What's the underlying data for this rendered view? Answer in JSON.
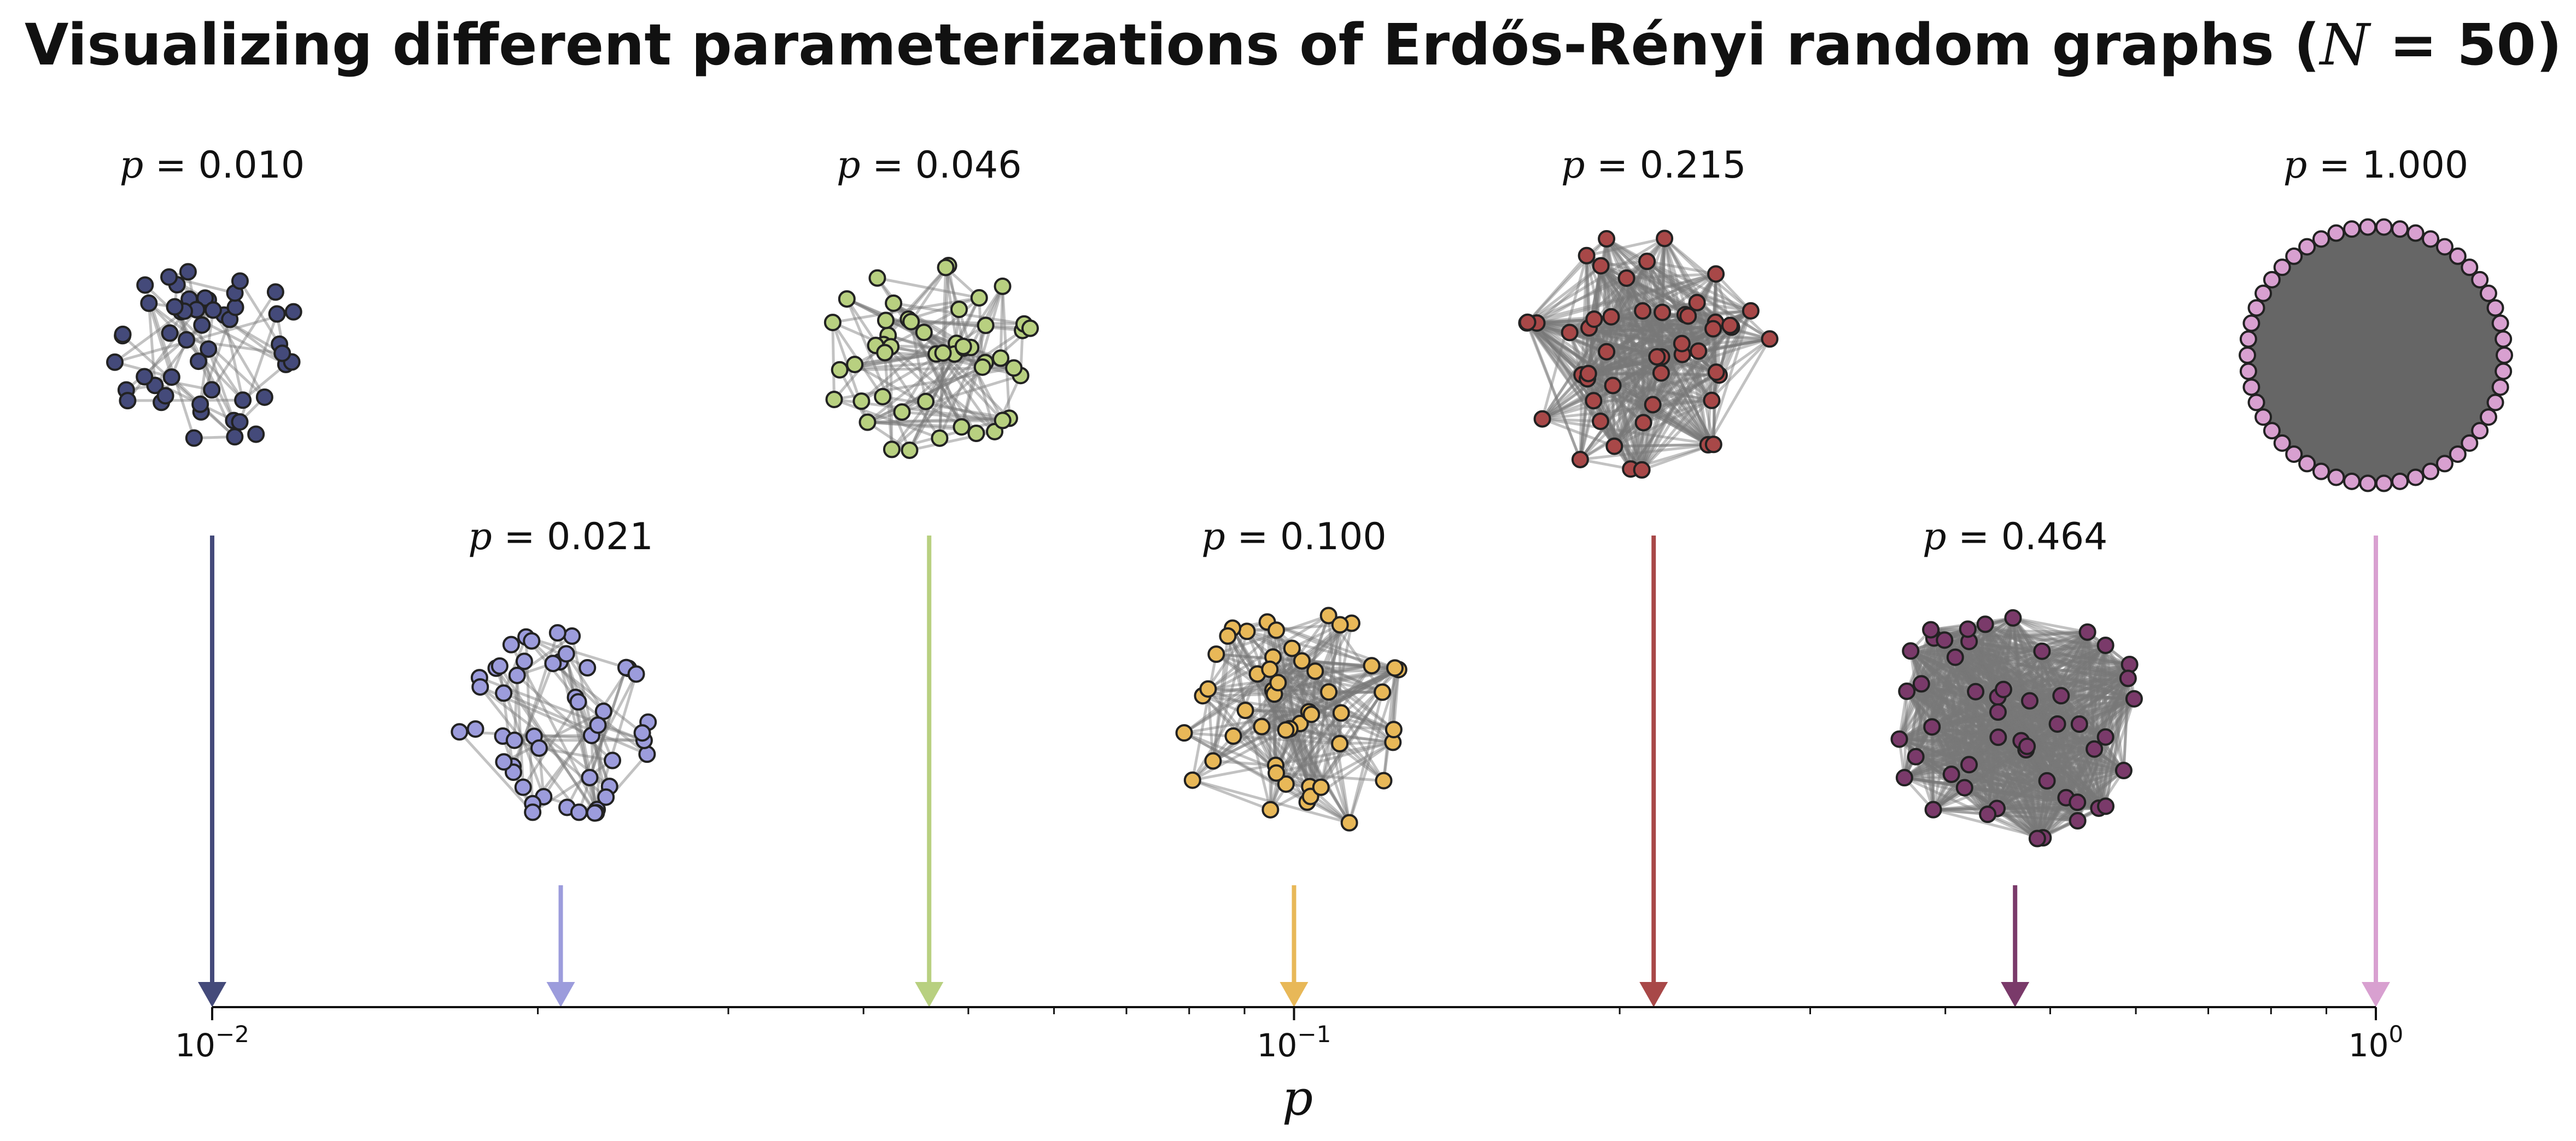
{
  "chart_data": {
    "type": "scatter",
    "title": "Visualizing different parameterizations of Erdős-Rényi random graphs (N = 50)",
    "title_parts": {
      "text": "Visualizing different parameterizations of Erdős-Rényi random graphs (",
      "var": "N",
      "rest": " = 50)"
    },
    "xlabel": "p",
    "x_scale": "log",
    "xlim": [
      0.01,
      1.0
    ],
    "x_ticks": [
      {
        "value": 0.01,
        "base": "10",
        "exp": "−2"
      },
      {
        "value": 0.1,
        "base": "10",
        "exp": "−1"
      },
      {
        "value": 1.0,
        "base": "10",
        "exp": "0"
      }
    ],
    "grid": false,
    "num_nodes": 50,
    "series": [
      {
        "p": 0.01,
        "label": "p = 0.010",
        "value_text": "0.010",
        "color": "#444a7a",
        "row": "top"
      },
      {
        "p": 0.021,
        "label": "p = 0.021",
        "value_text": "0.021",
        "color": "#9c9cdc",
        "row": "bottom"
      },
      {
        "p": 0.046,
        "label": "p = 0.046",
        "value_text": "0.046",
        "color": "#b8d080",
        "row": "top"
      },
      {
        "p": 0.1,
        "label": "p = 0.100",
        "value_text": "0.100",
        "color": "#e8b858",
        "row": "bottom"
      },
      {
        "p": 0.215,
        "label": "p = 0.215",
        "value_text": "0.215",
        "color": "#a84848",
        "row": "top"
      },
      {
        "p": 0.464,
        "label": "p = 0.464",
        "value_text": "0.464",
        "color": "#7a3a6a",
        "row": "bottom"
      },
      {
        "p": 1.0,
        "label": "p = 1.000",
        "value_text": "1.000",
        "color": "#d8a0d0",
        "row": "top"
      }
    ]
  }
}
